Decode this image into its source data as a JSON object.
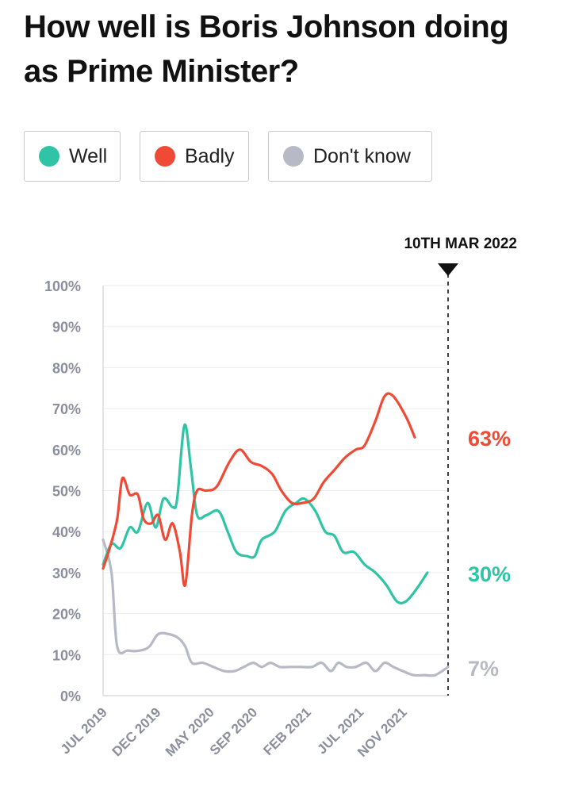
{
  "title": "How well is Boris Johnson doing as Prime Minister?",
  "legend": [
    {
      "label": "Well",
      "color": "#2ec4a5"
    },
    {
      "label": "Badly",
      "color": "#ef4a36"
    },
    {
      "label": "Don't know",
      "color": "#b7bac6"
    }
  ],
  "chart_data": {
    "type": "line",
    "marker_label": "10TH MAR 2022",
    "ylim": [
      0,
      100
    ],
    "y_ticks": [
      "0%",
      "10%",
      "20%",
      "30%",
      "40%",
      "50%",
      "60%",
      "70%",
      "80%",
      "90%",
      "100%"
    ],
    "x_range": [
      "2019-07-01",
      "2022-03-10"
    ],
    "x_ticks": [
      {
        "label": "JUL 2019",
        "date": "2019-07-01"
      },
      {
        "label": "DEC 2019",
        "date": "2019-12-01"
      },
      {
        "label": "MAY 2020",
        "date": "2020-05-01"
      },
      {
        "label": "SEP 2020",
        "date": "2020-09-01"
      },
      {
        "label": "FEB 2021",
        "date": "2021-02-01"
      },
      {
        "label": "JUL 2021",
        "date": "2021-07-01"
      },
      {
        "label": "NOV 2021",
        "date": "2021-11-01"
      }
    ],
    "series": [
      {
        "name": "Well",
        "color": "#2ec4a5",
        "end_label": "30%",
        "points": [
          [
            "2019-07-01",
            32
          ],
          [
            "2019-07-25",
            37
          ],
          [
            "2019-08-20",
            36
          ],
          [
            "2019-09-15",
            41
          ],
          [
            "2019-10-08",
            40
          ],
          [
            "2019-11-05",
            47
          ],
          [
            "2019-11-28",
            41
          ],
          [
            "2019-12-20",
            48
          ],
          [
            "2020-01-15",
            46
          ],
          [
            "2020-01-28",
            48
          ],
          [
            "2020-02-18",
            66
          ],
          [
            "2020-03-08",
            55
          ],
          [
            "2020-03-25",
            44
          ],
          [
            "2020-04-20",
            44
          ],
          [
            "2020-05-25",
            45
          ],
          [
            "2020-06-20",
            40
          ],
          [
            "2020-07-15",
            35
          ],
          [
            "2020-08-15",
            34
          ],
          [
            "2020-09-05",
            34
          ],
          [
            "2020-09-25",
            38
          ],
          [
            "2020-11-01",
            40
          ],
          [
            "2020-12-01",
            45
          ],
          [
            "2021-01-01",
            47
          ],
          [
            "2021-01-25",
            48
          ],
          [
            "2021-02-25",
            45
          ],
          [
            "2021-03-25",
            40
          ],
          [
            "2021-04-20",
            39
          ],
          [
            "2021-05-15",
            35
          ],
          [
            "2021-06-15",
            35
          ],
          [
            "2021-07-15",
            32
          ],
          [
            "2021-08-15",
            30
          ],
          [
            "2021-09-15",
            27
          ],
          [
            "2021-10-15",
            23
          ],
          [
            "2021-11-10",
            23
          ],
          [
            "2021-12-10",
            26
          ],
          [
            "2022-01-10",
            30
          ]
        ]
      },
      {
        "name": "Badly",
        "color": "#ef4a36",
        "end_label": "63%",
        "points": [
          [
            "2019-07-01",
            31
          ],
          [
            "2019-07-20",
            36
          ],
          [
            "2019-08-10",
            43
          ],
          [
            "2019-08-25",
            53
          ],
          [
            "2019-09-15",
            49
          ],
          [
            "2019-10-08",
            49
          ],
          [
            "2019-10-25",
            43
          ],
          [
            "2019-11-15",
            42
          ],
          [
            "2019-12-05",
            44
          ],
          [
            "2019-12-25",
            38
          ],
          [
            "2020-01-15",
            42
          ],
          [
            "2020-02-05",
            35
          ],
          [
            "2020-02-20",
            27
          ],
          [
            "2020-03-10",
            44
          ],
          [
            "2020-03-25",
            50
          ],
          [
            "2020-04-20",
            50
          ],
          [
            "2020-05-20",
            51
          ],
          [
            "2020-06-25",
            57
          ],
          [
            "2020-07-25",
            60
          ],
          [
            "2020-08-25",
            57
          ],
          [
            "2020-09-25",
            56
          ],
          [
            "2020-10-25",
            54
          ],
          [
            "2020-11-20",
            50
          ],
          [
            "2020-12-20",
            47
          ],
          [
            "2021-01-20",
            47
          ],
          [
            "2021-02-20",
            48
          ],
          [
            "2021-03-20",
            52
          ],
          [
            "2021-04-20",
            55
          ],
          [
            "2021-05-20",
            58
          ],
          [
            "2021-06-20",
            60
          ],
          [
            "2021-07-15",
            61
          ],
          [
            "2021-08-15",
            67
          ],
          [
            "2021-09-10",
            73
          ],
          [
            "2021-10-05",
            73
          ],
          [
            "2021-11-10",
            68
          ],
          [
            "2021-12-05",
            63
          ]
        ]
      },
      {
        "name": "Don't know",
        "color": "#b7bac6",
        "end_label": "7%",
        "points": [
          [
            "2019-07-01",
            38
          ],
          [
            "2019-07-25",
            30
          ],
          [
            "2019-08-10",
            12
          ],
          [
            "2019-09-10",
            11
          ],
          [
            "2019-10-15",
            11
          ],
          [
            "2019-11-10",
            12
          ],
          [
            "2019-12-05",
            15
          ],
          [
            "2020-01-05",
            15
          ],
          [
            "2020-02-01",
            14
          ],
          [
            "2020-02-20",
            12
          ],
          [
            "2020-03-10",
            8
          ],
          [
            "2020-04-10",
            8
          ],
          [
            "2020-05-10",
            7
          ],
          [
            "2020-06-10",
            6
          ],
          [
            "2020-07-10",
            6
          ],
          [
            "2020-08-05",
            7
          ],
          [
            "2020-09-01",
            8
          ],
          [
            "2020-09-25",
            7
          ],
          [
            "2020-10-20",
            8
          ],
          [
            "2020-11-15",
            7
          ],
          [
            "2020-12-15",
            7
          ],
          [
            "2021-01-15",
            7
          ],
          [
            "2021-02-15",
            7
          ],
          [
            "2021-03-15",
            8
          ],
          [
            "2021-04-10",
            6
          ],
          [
            "2021-05-01",
            8
          ],
          [
            "2021-05-25",
            7
          ],
          [
            "2021-06-20",
            7
          ],
          [
            "2021-07-20",
            8
          ],
          [
            "2021-08-15",
            6
          ],
          [
            "2021-09-10",
            8
          ],
          [
            "2021-10-05",
            7
          ],
          [
            "2021-11-01",
            6
          ],
          [
            "2021-12-01",
            5
          ],
          [
            "2022-01-01",
            5
          ],
          [
            "2022-02-01",
            5
          ],
          [
            "2022-03-10",
            7
          ]
        ]
      }
    ]
  }
}
